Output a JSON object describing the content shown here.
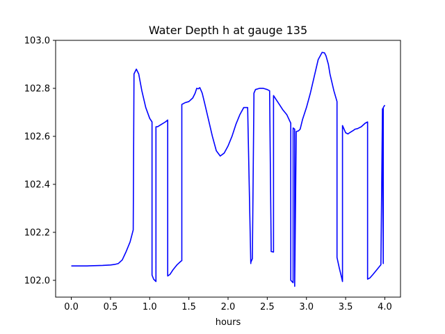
{
  "chart_data": {
    "type": "line",
    "title": "Water Depth h at gauge 135",
    "xlabel": "hours",
    "ylabel": "",
    "xlim": [
      -0.2,
      4.2
    ],
    "ylim": [
      101.93,
      103.0
    ],
    "xticks": [
      0.0,
      0.5,
      1.0,
      1.5,
      2.0,
      2.5,
      3.0,
      3.5,
      4.0
    ],
    "xtick_labels": [
      "0.0",
      "0.5",
      "1.0",
      "1.5",
      "2.0",
      "2.5",
      "3.0",
      "3.5",
      "4.0"
    ],
    "yticks": [
      102.0,
      102.2,
      102.4,
      102.6,
      102.8,
      103.0
    ],
    "ytick_labels": [
      "102.0",
      "102.2",
      "102.4",
      "102.6",
      "102.8",
      "103.0"
    ],
    "grid": false,
    "legend": "none",
    "series": [
      {
        "color": "#0000ff",
        "x": [
          0.0,
          0.2,
          0.4,
          0.5,
          0.55,
          0.6,
          0.65,
          0.7,
          0.75,
          0.79,
          0.8,
          0.83,
          0.86,
          0.9,
          0.95,
          1.0,
          1.03,
          1.03,
          1.05,
          1.08,
          1.08,
          1.1,
          1.15,
          1.2,
          1.23,
          1.23,
          1.26,
          1.3,
          1.35,
          1.4,
          1.41,
          1.41,
          1.45,
          1.5,
          1.55,
          1.58,
          1.6,
          1.62,
          1.64,
          1.67,
          1.7,
          1.75,
          1.8,
          1.85,
          1.9,
          1.95,
          2.0,
          2.05,
          2.1,
          2.15,
          2.2,
          2.25,
          2.29,
          2.29,
          2.31,
          2.33,
          2.33,
          2.35,
          2.4,
          2.45,
          2.5,
          2.53,
          2.55,
          2.55,
          2.58,
          2.58,
          2.6,
          2.63,
          2.66,
          2.7,
          2.75,
          2.8,
          2.8,
          2.83,
          2.83,
          2.85,
          2.85,
          2.87,
          2.9,
          2.92,
          2.95,
          3.0,
          3.05,
          3.1,
          3.15,
          3.2,
          3.23,
          3.25,
          3.28,
          3.3,
          3.35,
          3.39,
          3.39,
          3.42,
          3.45,
          3.46,
          3.46,
          3.48,
          3.5,
          3.53,
          3.55,
          3.6,
          3.62,
          3.65,
          3.7,
          3.75,
          3.78,
          3.78,
          3.81,
          3.85,
          3.9,
          3.95,
          3.95,
          3.97,
          3.98,
          3.98,
          4.0
        ],
        "y": [
          102.06,
          102.06,
          102.062,
          102.064,
          102.066,
          102.07,
          102.085,
          102.12,
          102.16,
          102.21,
          102.86,
          102.88,
          102.86,
          102.79,
          102.72,
          102.675,
          102.66,
          102.022,
          102.005,
          101.995,
          102.64,
          102.64,
          102.65,
          102.66,
          102.668,
          102.018,
          102.025,
          102.045,
          102.065,
          102.08,
          102.082,
          102.733,
          102.74,
          102.745,
          102.76,
          102.78,
          102.8,
          102.798,
          102.803,
          102.78,
          102.74,
          102.67,
          102.6,
          102.54,
          102.518,
          102.53,
          102.56,
          102.6,
          102.65,
          102.69,
          102.72,
          102.72,
          102.07,
          102.075,
          102.09,
          102.76,
          102.78,
          102.795,
          102.8,
          102.8,
          102.795,
          102.79,
          102.135,
          102.12,
          102.118,
          102.77,
          102.76,
          102.745,
          102.73,
          102.71,
          102.69,
          102.655,
          102.0,
          101.99,
          102.635,
          102.63,
          101.975,
          102.62,
          102.623,
          102.63,
          102.67,
          102.72,
          102.78,
          102.85,
          102.92,
          102.95,
          102.948,
          102.935,
          102.9,
          102.86,
          102.79,
          102.745,
          102.095,
          102.05,
          102.01,
          101.995,
          102.645,
          102.63,
          102.615,
          102.61,
          102.615,
          102.625,
          102.63,
          102.632,
          102.64,
          102.655,
          102.66,
          102.005,
          102.01,
          102.025,
          102.045,
          102.065,
          102.07,
          102.715,
          102.07,
          102.72,
          102.73
        ]
      }
    ]
  }
}
